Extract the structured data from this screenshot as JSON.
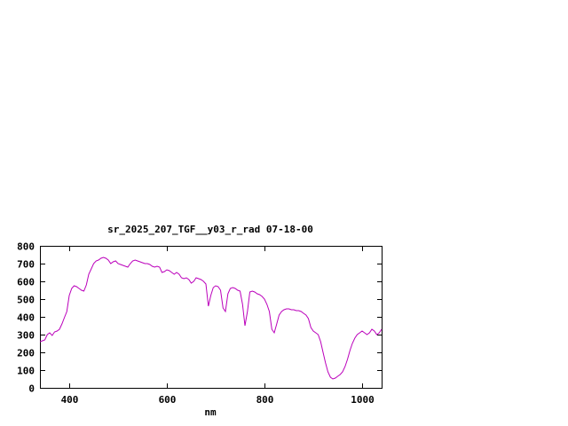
{
  "window": {
    "background": "#ffffff",
    "text_color": "#000000"
  },
  "chart_data": {
    "type": "line",
    "title": "sr_2025_207_TGF__y03_r_rad 07-18-00",
    "xlabel": "nm",
    "ylabel": "",
    "xlim": [
      340,
      1040
    ],
    "ylim": [
      0,
      800
    ],
    "xticks": [
      400,
      600,
      800,
      1000
    ],
    "yticks": [
      0,
      100,
      200,
      300,
      400,
      500,
      600,
      700,
      800
    ],
    "grid": false,
    "legend_position": "none",
    "line_color": "#bb00bb",
    "border_color": "#000000",
    "series": [
      {
        "x": [
          340,
          345,
          350,
          355,
          360,
          365,
          370,
          375,
          380,
          385,
          390,
          395,
          400,
          405,
          410,
          415,
          420,
          425,
          430,
          435,
          440,
          445,
          450,
          455,
          460,
          465,
          470,
          475,
          480,
          485,
          490,
          495,
          500,
          505,
          510,
          515,
          520,
          525,
          530,
          535,
          540,
          545,
          550,
          555,
          560,
          565,
          570,
          575,
          580,
          585,
          590,
          595,
          600,
          605,
          610,
          615,
          620,
          625,
          630,
          635,
          640,
          645,
          650,
          655,
          660,
          665,
          670,
          675,
          680,
          685,
          690,
          695,
          700,
          705,
          710,
          715,
          720,
          725,
          730,
          735,
          740,
          745,
          750,
          755,
          760,
          765,
          770,
          775,
          780,
          785,
          790,
          795,
          800,
          805,
          810,
          815,
          820,
          825,
          830,
          835,
          840,
          845,
          850,
          855,
          860,
          865,
          870,
          875,
          880,
          885,
          890,
          895,
          900,
          905,
          910,
          915,
          920,
          925,
          930,
          935,
          940,
          945,
          950,
          955,
          960,
          965,
          970,
          975,
          980,
          985,
          990,
          995,
          1000,
          1005,
          1010,
          1015,
          1020,
          1025,
          1030,
          1035,
          1040
        ],
        "y": [
          260,
          265,
          270,
          300,
          310,
          295,
          315,
          320,
          330,
          360,
          395,
          430,
          520,
          560,
          575,
          570,
          560,
          550,
          545,
          580,
          640,
          670,
          700,
          715,
          720,
          730,
          735,
          730,
          720,
          700,
          710,
          715,
          700,
          695,
          690,
          685,
          680,
          700,
          715,
          720,
          715,
          710,
          705,
          700,
          700,
          695,
          685,
          680,
          685,
          680,
          650,
          655,
          665,
          660,
          650,
          640,
          650,
          640,
          620,
          615,
          620,
          610,
          590,
          600,
          620,
          615,
          610,
          600,
          585,
          460,
          520,
          565,
          575,
          570,
          550,
          450,
          430,
          530,
          560,
          565,
          560,
          550,
          545,
          470,
          350,
          430,
          540,
          545,
          540,
          530,
          525,
          515,
          500,
          470,
          430,
          330,
          310,
          360,
          410,
          430,
          440,
          445,
          445,
          440,
          440,
          435,
          435,
          430,
          420,
          410,
          390,
          340,
          320,
          310,
          300,
          260,
          200,
          140,
          90,
          60,
          50,
          55,
          65,
          75,
          90,
          120,
          160,
          210,
          250,
          280,
          300,
          310,
          320,
          310,
          300,
          310,
          330,
          320,
          300,
          310,
          330
        ]
      }
    ]
  }
}
